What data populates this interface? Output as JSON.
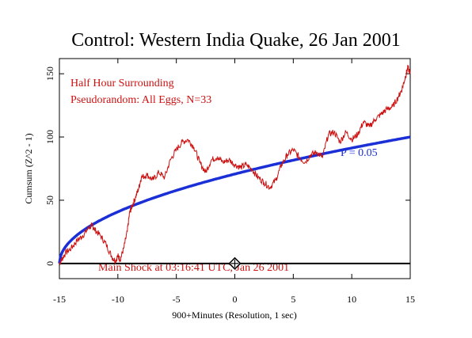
{
  "chart_data": {
    "type": "line",
    "title": "Control: Western India Quake, 26 Jan 2001",
    "xlabel": "900+Minutes (Resolution, 1 sec)",
    "ylabel": "Cumsum (Z^2 - 1)",
    "xlim": [
      -15,
      15
    ],
    "ylim": [
      -12,
      162
    ],
    "xticks": [
      -15,
      -10,
      -5,
      0,
      5,
      10,
      15
    ],
    "xtick_labels": [
      "-15",
      "-10",
      "-5",
      "0",
      "5",
      "10",
      "15"
    ],
    "yticks": [
      0,
      50,
      100,
      150
    ],
    "ytick_labels": [
      "0",
      "50",
      "100",
      "150"
    ],
    "grid": false,
    "annotations": {
      "top_left_line1": "Half Hour Surrounding",
      "top_left_line2": "Pseudorandom: All Eggs, N=33",
      "bottom": "Main Shock at 03:16:41 UTC, Jan 26 2001",
      "probability_label": "P = 0.05"
    },
    "event_marker": {
      "x": 0,
      "y": 0
    },
    "baseline_y": 0,
    "colors": {
      "data": "#cc1111",
      "envelope": "#1a2fd6",
      "annotation": "#cc1111",
      "probability": "#1a2fd6",
      "axes": "#000000"
    },
    "series": [
      {
        "role": "cumulative deviation",
        "x": [
          -15,
          -14.8,
          -14.5,
          -14,
          -13.5,
          -13,
          -12.5,
          -12.2,
          -12,
          -11.5,
          -11,
          -10.5,
          -10.2,
          -10,
          -9.8,
          -9.5,
          -9.2,
          -9,
          -8.8,
          -8.5,
          -8.2,
          -8,
          -7.5,
          -7,
          -6.5,
          -6,
          -5.5,
          -5,
          -4.5,
          -4,
          -3.5,
          -3,
          -2.5,
          -2,
          -1.5,
          -1,
          -0.5,
          0,
          0.5,
          1,
          1.5,
          2,
          2.5,
          3,
          3.5,
          4,
          4.5,
          5,
          5.5,
          6,
          6.5,
          7,
          7.5,
          8,
          8.5,
          9,
          9.5,
          10,
          10.5,
          11,
          11.5,
          12,
          12.5,
          13,
          13.5,
          14,
          14.3,
          14.6,
          14.8,
          15
        ],
        "y": [
          0,
          3,
          8,
          12,
          18,
          22,
          28,
          30,
          27,
          22,
          15,
          5,
          2,
          6,
          3,
          12,
          25,
          40,
          45,
          52,
          60,
          68,
          70,
          66,
          72,
          68,
          82,
          90,
          96,
          98,
          92,
          80,
          72,
          82,
          84,
          80,
          82,
          78,
          76,
          78,
          74,
          68,
          64,
          60,
          66,
          78,
          86,
          90,
          84,
          80,
          86,
          88,
          84,
          102,
          104,
          96,
          104,
          98,
          102,
          112,
          108,
          114,
          118,
          122,
          124,
          132,
          138,
          148,
          155,
          150
        ]
      },
      {
        "role": "probability envelope",
        "name": "P = 0.05",
        "formula": "y = 100 * sqrt((x + 15) / 30)"
      }
    ]
  }
}
